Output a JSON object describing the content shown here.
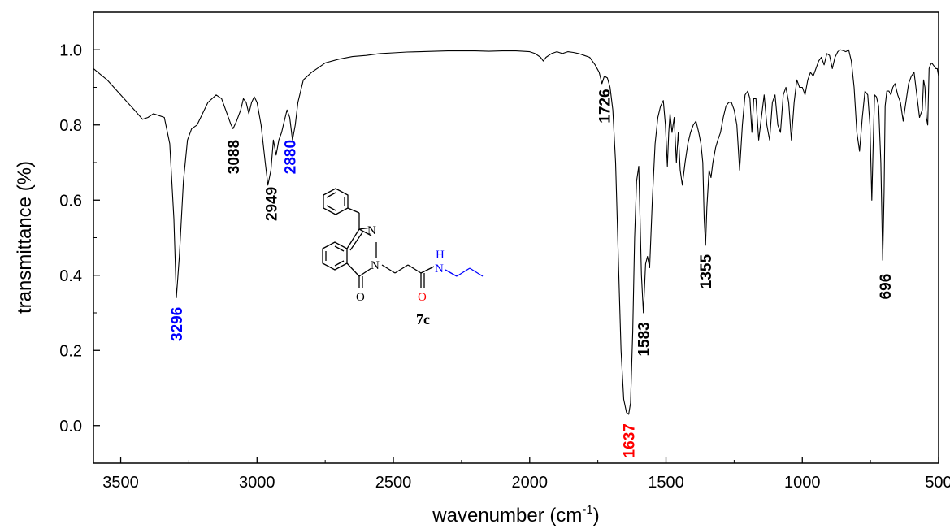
{
  "chart_data": {
    "type": "line",
    "xlabel": "wavenumber (cm",
    "xlabel_sup": "-1",
    "xlabel_close": ")",
    "ylabel": "transmittance (%)",
    "xlim": [
      3600,
      500
    ],
    "ylim": [
      -0.1,
      1.1
    ],
    "x_ticks": [
      3500,
      3000,
      2500,
      2000,
      1500,
      1000,
      500
    ],
    "x_tick_labels": [
      "3500",
      "3000",
      "2500",
      "2000",
      "1500",
      "1000",
      "500"
    ],
    "y_ticks": [
      0.0,
      0.2,
      0.4,
      0.6,
      0.8,
      1.0
    ],
    "y_tick_labels": [
      "0.0",
      "0.2",
      "0.4",
      "0.6",
      "0.8",
      "1.0"
    ],
    "grid": false,
    "line_color": "#000000",
    "series": [
      {
        "x": [
          3600,
          3550,
          3500,
          3450,
          3420,
          3400,
          3380,
          3360,
          3340,
          3320,
          3305,
          3296,
          3285,
          3270,
          3255,
          3240,
          3220,
          3200,
          3180,
          3150,
          3130,
          3110,
          3095,
          3088,
          3075,
          3060,
          3050,
          3040,
          3030,
          3020,
          3010,
          3000,
          2985,
          2970,
          2960,
          2949,
          2940,
          2930,
          2920,
          2910,
          2900,
          2890,
          2880,
          2870,
          2860,
          2850,
          2830,
          2800,
          2780,
          2750,
          2700,
          2650,
          2600,
          2550,
          2500,
          2450,
          2400,
          2350,
          2300,
          2250,
          2200,
          2150,
          2100,
          2050,
          2000,
          1980,
          1960,
          1950,
          1940,
          1920,
          1900,
          1880,
          1860,
          1840,
          1820,
          1800,
          1780,
          1760,
          1745,
          1735,
          1726,
          1715,
          1705,
          1695,
          1685,
          1675,
          1665,
          1655,
          1645,
          1637,
          1630,
          1622,
          1615,
          1608,
          1600,
          1595,
          1590,
          1583,
          1575,
          1568,
          1560,
          1550,
          1540,
          1530,
          1520,
          1510,
          1502,
          1495,
          1490,
          1485,
          1478,
          1470,
          1462,
          1455,
          1448,
          1440,
          1430,
          1420,
          1410,
          1400,
          1390,
          1380,
          1372,
          1365,
          1360,
          1355,
          1350,
          1342,
          1335,
          1328,
          1318,
          1310,
          1300,
          1290,
          1280,
          1270,
          1260,
          1250,
          1240,
          1230,
          1220,
          1210,
          1200,
          1192,
          1185,
          1178,
          1170,
          1160,
          1150,
          1140,
          1130,
          1120,
          1110,
          1100,
          1090,
          1080,
          1070,
          1060,
          1050,
          1040,
          1030,
          1020,
          1010,
          1000,
          990,
          980,
          970,
          960,
          950,
          940,
          930,
          920,
          910,
          900,
          890,
          880,
          870,
          860,
          850,
          840,
          830,
          820,
          810,
          800,
          790,
          780,
          770,
          760,
          752,
          745,
          740,
          735,
          728,
          720,
          712,
          705,
          700,
          696,
          690,
          682,
          675,
          668,
          660,
          650,
          640,
          630,
          620,
          610,
          600,
          590,
          580,
          570,
          560,
          555,
          550,
          545,
          540,
          535,
          530,
          525,
          520,
          515,
          510,
          505,
          500
        ],
        "y": [
          0.95,
          0.92,
          0.88,
          0.84,
          0.815,
          0.82,
          0.83,
          0.825,
          0.82,
          0.75,
          0.55,
          0.34,
          0.45,
          0.65,
          0.76,
          0.79,
          0.8,
          0.83,
          0.86,
          0.88,
          0.87,
          0.83,
          0.8,
          0.79,
          0.81,
          0.84,
          0.87,
          0.86,
          0.83,
          0.86,
          0.875,
          0.86,
          0.8,
          0.7,
          0.64,
          0.68,
          0.76,
          0.72,
          0.76,
          0.78,
          0.81,
          0.84,
          0.82,
          0.76,
          0.8,
          0.86,
          0.92,
          0.94,
          0.95,
          0.965,
          0.975,
          0.982,
          0.985,
          0.99,
          0.992,
          0.994,
          0.995,
          0.996,
          0.997,
          0.997,
          0.997,
          0.996,
          0.997,
          0.997,
          0.995,
          0.99,
          0.98,
          0.97,
          0.98,
          0.99,
          0.995,
          0.99,
          0.995,
          0.993,
          0.99,
          0.985,
          0.98,
          0.96,
          0.94,
          0.91,
          0.93,
          0.925,
          0.9,
          0.84,
          0.7,
          0.45,
          0.2,
          0.07,
          0.035,
          0.03,
          0.06,
          0.25,
          0.5,
          0.65,
          0.69,
          0.55,
          0.4,
          0.3,
          0.43,
          0.45,
          0.42,
          0.6,
          0.75,
          0.82,
          0.85,
          0.865,
          0.8,
          0.69,
          0.78,
          0.83,
          0.78,
          0.82,
          0.7,
          0.78,
          0.68,
          0.64,
          0.7,
          0.75,
          0.78,
          0.8,
          0.81,
          0.78,
          0.75,
          0.7,
          0.55,
          0.48,
          0.58,
          0.68,
          0.66,
          0.7,
          0.74,
          0.76,
          0.78,
          0.82,
          0.85,
          0.86,
          0.86,
          0.84,
          0.8,
          0.68,
          0.8,
          0.88,
          0.89,
          0.87,
          0.78,
          0.87,
          0.87,
          0.76,
          0.82,
          0.88,
          0.8,
          0.76,
          0.86,
          0.88,
          0.8,
          0.78,
          0.88,
          0.9,
          0.86,
          0.76,
          0.86,
          0.92,
          0.9,
          0.9,
          0.88,
          0.92,
          0.94,
          0.93,
          0.95,
          0.97,
          0.98,
          0.96,
          0.99,
          0.985,
          0.95,
          0.98,
          0.995,
          1.0,
          0.998,
          0.995,
          1.0,
          0.97,
          0.9,
          0.78,
          0.73,
          0.82,
          0.89,
          0.88,
          0.8,
          0.6,
          0.75,
          0.88,
          0.875,
          0.85,
          0.7,
          0.44,
          0.62,
          0.85,
          0.89,
          0.89,
          0.88,
          0.9,
          0.91,
          0.88,
          0.86,
          0.81,
          0.86,
          0.91,
          0.93,
          0.94,
          0.88,
          0.82,
          0.84,
          0.92,
          0.9,
          0.82,
          0.8,
          0.95,
          0.96,
          0.965,
          0.96,
          0.955,
          0.95,
          0.95,
          0.93
        ]
      }
    ],
    "peak_labels": [
      {
        "text": "3296",
        "x": 3296,
        "y": 0.27,
        "color": "#0000ff"
      },
      {
        "text": "3088",
        "x": 3088,
        "y": 0.715,
        "color": "#000000"
      },
      {
        "text": "2949",
        "x": 2949,
        "y": 0.59,
        "color": "#000000"
      },
      {
        "text": "2880",
        "x": 2880,
        "y": 0.715,
        "color": "#0000ff"
      },
      {
        "text": "1726",
        "x": 1726,
        "y": 0.85,
        "color": "#000000"
      },
      {
        "text": "1637",
        "x": 1637,
        "y": -0.04,
        "color": "#ff0000"
      },
      {
        "text": "1583",
        "x": 1583,
        "y": 0.23,
        "color": "#000000"
      },
      {
        "text": "1355",
        "x": 1355,
        "y": 0.41,
        "color": "#000000"
      },
      {
        "text": "696",
        "x": 696,
        "y": 0.37,
        "color": "#000000"
      }
    ]
  },
  "molecule": {
    "compound_label": "7c",
    "atom_n1": "N",
    "atom_n2": "N",
    "atom_nh_n": "N",
    "atom_nh_h": "H",
    "atom_o_ketone": "O",
    "atom_o_amide": "O",
    "colors": {
      "amide_n": "#0000ff",
      "amide_o": "#ff0000",
      "chain": "#0000ff",
      "core": "#000000"
    }
  }
}
